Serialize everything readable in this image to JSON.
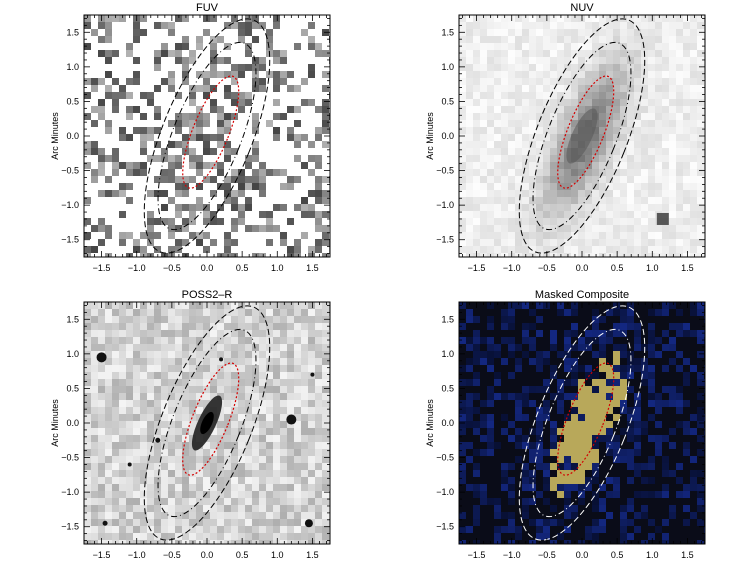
{
  "panels": [
    {
      "title": "FUV",
      "ylabel": "Arc Minutes",
      "style": "sparse-gray"
    },
    {
      "title": "NUV",
      "ylabel": "Arc Minutes",
      "style": "light-gray"
    },
    {
      "title": "POSS2–R",
      "ylabel": "Arc Minutes",
      "style": "optical-gray"
    },
    {
      "title": "Masked Composite",
      "ylabel": "Arc Minutes",
      "style": "composite-color"
    }
  ],
  "x_ticks": [
    "−1.5",
    "−1.0",
    "−0.5",
    "0.0",
    "0.5",
    "1.0",
    "1.5"
  ],
  "y_ticks": [
    "1.5",
    "1.0",
    "0.5",
    "0.0",
    "−0.5",
    "−1.0",
    "−1.5"
  ],
  "axis_range": [
    -1.75,
    1.75
  ],
  "colors": {
    "inner_ellipse": "#d40000",
    "outer_ellipses": "#000000",
    "composite_ellipses": "#ffffff",
    "composite_background": "#0a0c18",
    "composite_blue": "#2a3c8a",
    "composite_yellow": "#b8a85a"
  }
}
